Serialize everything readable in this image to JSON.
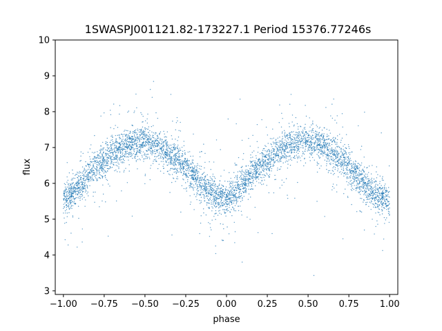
{
  "chart_data": {
    "type": "scatter",
    "title": "1SWASPJ001121.82-173227.1 Period 15376.77246s",
    "xlabel": "phase",
    "ylabel": "flux",
    "xlim": [
      -1.05,
      1.05
    ],
    "ylim": [
      2.9,
      10.0
    ],
    "xticks": [
      -1.0,
      -0.75,
      -0.5,
      -0.25,
      0.0,
      0.25,
      0.5,
      0.75,
      1.0
    ],
    "xtick_labels": [
      "−1.00",
      "−0.75",
      "−0.50",
      "−0.25",
      "0.00",
      "0.25",
      "0.50",
      "0.75",
      "1.00"
    ],
    "yticks": [
      3,
      4,
      5,
      6,
      7,
      8,
      9,
      10
    ],
    "ytick_labels": [
      "3",
      "4",
      "5",
      "6",
      "7",
      "8",
      "9",
      "10"
    ],
    "grid": false,
    "legend": "none",
    "point_color": "#1f77b4",
    "series": [
      {
        "x": [
          -1.0,
          -0.9,
          -0.8,
          -0.7,
          -0.6,
          -0.5,
          -0.4,
          -0.3,
          -0.2,
          -0.1,
          0.0,
          0.1,
          0.2,
          0.3,
          0.4,
          0.5,
          0.6,
          0.7,
          0.8,
          0.9,
          1.0
        ],
        "y": [
          5.5,
          5.95,
          6.45,
          6.85,
          7.1,
          7.15,
          7.0,
          6.65,
          6.2,
          5.75,
          5.5,
          5.95,
          6.45,
          6.85,
          7.1,
          7.15,
          7.0,
          6.65,
          6.2,
          5.75,
          5.5
        ]
      }
    ]
  }
}
